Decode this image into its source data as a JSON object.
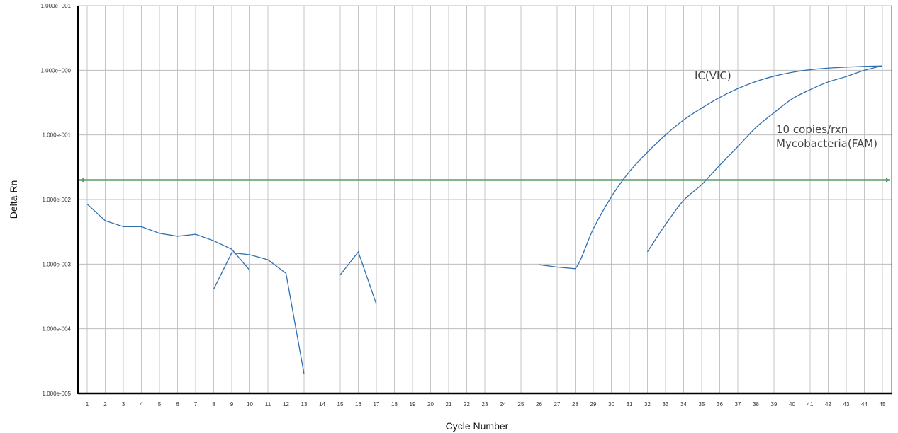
{
  "chart_data": {
    "type": "line",
    "title": "",
    "xlabel": "Cycle Number",
    "ylabel": "Delta Rn",
    "y_scale": "log",
    "ylim": [
      1e-05,
      10
    ],
    "xlim": [
      1,
      45
    ],
    "grid": true,
    "y_tick_labels": [
      "1.000e+001",
      "1.000e+000",
      "1.000e-001",
      "1.000e-002",
      "1.000e-003",
      "1.000e-004",
      "1.000e-005"
    ],
    "x_tick_labels": [
      "1",
      "2",
      "3",
      "4",
      "5",
      "6",
      "7",
      "8",
      "9",
      "10",
      "11",
      "12",
      "13",
      "14",
      "15",
      "16",
      "17",
      "18",
      "19",
      "20",
      "21",
      "22",
      "23",
      "24",
      "25",
      "26",
      "27",
      "28",
      "29",
      "30",
      "31",
      "32",
      "33",
      "34",
      "35",
      "36",
      "37",
      "38",
      "39",
      "40",
      "41",
      "42",
      "43",
      "44",
      "45"
    ],
    "threshold": {
      "value": 0.02,
      "color": "#5a9e6a"
    },
    "line_color": "#2f6fb0",
    "annotations": [
      {
        "text": "IC(VIC)",
        "series": "IC(VIC)"
      },
      {
        "text": "10 copies/rxn",
        "series": "Mycobacteria(FAM)"
      },
      {
        "text": "Mycobacteria(FAM)",
        "series": "Mycobacteria(FAM)"
      }
    ],
    "segments": [
      {
        "series": "baseline",
        "points": [
          [
            1,
            0.0085
          ],
          [
            2,
            0.0047
          ],
          [
            3,
            0.0038
          ],
          [
            4,
            0.0038
          ],
          [
            5,
            0.003
          ],
          [
            6,
            0.0027
          ],
          [
            7,
            0.0029
          ],
          [
            8,
            0.0023
          ],
          [
            9,
            0.0017
          ],
          [
            10,
            0.0008
          ]
        ]
      },
      {
        "series": "baseline",
        "points": [
          [
            8,
            0.00041
          ],
          [
            9,
            0.0015
          ],
          [
            10,
            0.0014
          ],
          [
            11,
            0.00117
          ],
          [
            12,
            0.00072
          ],
          [
            13,
            2e-05
          ]
        ]
      },
      {
        "series": "baseline",
        "points": [
          [
            15,
            0.00068
          ],
          [
            16,
            0.00155
          ],
          [
            17,
            0.00024
          ]
        ]
      },
      {
        "series": "IC(VIC)",
        "points": [
          [
            26,
            0.00098
          ],
          [
            27,
            0.0009
          ],
          [
            28,
            0.00085
          ],
          [
            29,
            0.0035
          ],
          [
            30,
            0.011
          ],
          [
            31,
            0.027
          ],
          [
            32,
            0.054
          ],
          [
            33,
            0.1
          ],
          [
            34,
            0.17
          ],
          [
            35,
            0.26
          ],
          [
            36,
            0.38
          ],
          [
            37,
            0.52
          ],
          [
            38,
            0.67
          ],
          [
            39,
            0.81
          ],
          [
            40,
            0.93
          ],
          [
            41,
            1.02
          ],
          [
            42,
            1.08
          ],
          [
            43,
            1.12
          ],
          [
            44,
            1.15
          ],
          [
            45,
            1.17
          ]
        ]
      },
      {
        "series": "Mycobacteria(FAM)",
        "points": [
          [
            32,
            0.00155
          ],
          [
            33,
            0.0041
          ],
          [
            34,
            0.0097
          ],
          [
            35,
            0.017
          ],
          [
            36,
            0.034
          ],
          [
            37,
            0.066
          ],
          [
            38,
            0.13
          ],
          [
            39,
            0.22
          ],
          [
            40,
            0.36
          ],
          [
            41,
            0.5
          ],
          [
            42,
            0.66
          ],
          [
            43,
            0.8
          ],
          [
            44,
            1.0
          ],
          [
            45,
            1.17
          ]
        ]
      }
    ]
  }
}
